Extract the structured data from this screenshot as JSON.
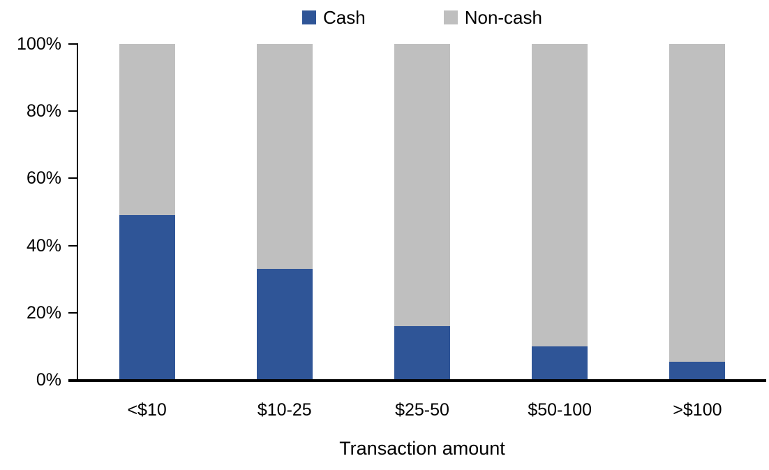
{
  "chart_data": {
    "type": "bar",
    "stacked": true,
    "orientation": "vertical",
    "title": "",
    "xlabel": "Transaction amount",
    "ylabel": "",
    "categories": [
      "<$10",
      "$10-25",
      "$25-50",
      "$50-100",
      ">$100"
    ],
    "series": [
      {
        "name": "Cash",
        "color": "#2F5597",
        "values": [
          49,
          33,
          16,
          10,
          5.5
        ]
      },
      {
        "name": "Non-cash",
        "color": "#BFBFBF",
        "values": [
          51,
          67,
          84,
          90,
          94.5
        ]
      }
    ],
    "ylim": [
      0,
      100
    ],
    "ytick_values": [
      0,
      20,
      40,
      60,
      80,
      100
    ],
    "ytick_labels": [
      "0%",
      "20%",
      "40%",
      "60%",
      "80%",
      "100%"
    ],
    "legend_position": "top-center",
    "grid": false,
    "axis_color": "#000000",
    "background_color": "#ffffff"
  }
}
